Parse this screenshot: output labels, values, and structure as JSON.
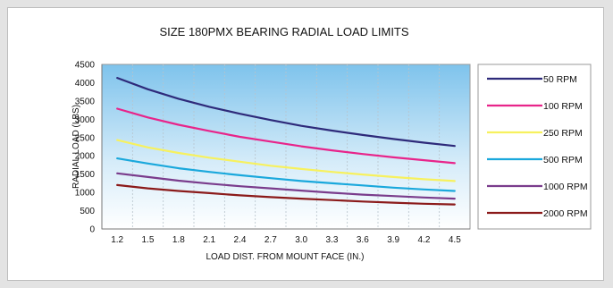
{
  "chart_data": {
    "type": "line",
    "title": "SIZE 180PMX BEARING RADIAL LOAD LIMITS",
    "xlabel": "LOAD DIST. FROM MOUNT FACE (IN.)",
    "ylabel": "RADIAL LOAD (LBS)",
    "x": [
      1.2,
      1.5,
      1.8,
      2.1,
      2.4,
      2.7,
      3.0,
      3.3,
      3.6,
      3.9,
      4.2,
      4.5
    ],
    "x_tick_labels": [
      "1.2",
      "1.5",
      "1.8",
      "2.1",
      "2.4",
      "2.7",
      "3.0",
      "3.3",
      "3.6",
      "3.9",
      "4.2",
      "4.5"
    ],
    "ylim": [
      0,
      4500
    ],
    "y_ticks": [
      0,
      500,
      1000,
      1500,
      2000,
      2500,
      3000,
      3500,
      4000,
      4500
    ],
    "grid": "vertical",
    "legend_position": "right",
    "series": [
      {
        "name": "50 RPM",
        "color": "#2e2a7a",
        "values": [
          4130,
          3820,
          3560,
          3340,
          3150,
          2980,
          2820,
          2690,
          2570,
          2460,
          2360,
          2270
        ]
      },
      {
        "name": "100 RPM",
        "color": "#e8248a",
        "values": [
          3290,
          3050,
          2850,
          2680,
          2520,
          2390,
          2260,
          2150,
          2050,
          1960,
          1880,
          1800
        ]
      },
      {
        "name": "250 RPM",
        "color": "#f7f15e",
        "values": [
          2430,
          2230,
          2080,
          1950,
          1840,
          1730,
          1640,
          1560,
          1490,
          1420,
          1360,
          1310
        ]
      },
      {
        "name": "500 RPM",
        "color": "#1aa8dc",
        "values": [
          1930,
          1790,
          1660,
          1560,
          1470,
          1390,
          1310,
          1250,
          1190,
          1130,
          1080,
          1040
        ]
      },
      {
        "name": "1000 RPM",
        "color": "#7a3c8c",
        "values": [
          1520,
          1420,
          1320,
          1240,
          1170,
          1110,
          1050,
          990,
          940,
          900,
          860,
          830
        ]
      },
      {
        "name": "2000 RPM",
        "color": "#8b1a1a",
        "values": [
          1200,
          1110,
          1040,
          980,
          920,
          870,
          830,
          790,
          750,
          720,
          690,
          670
        ]
      }
    ]
  }
}
